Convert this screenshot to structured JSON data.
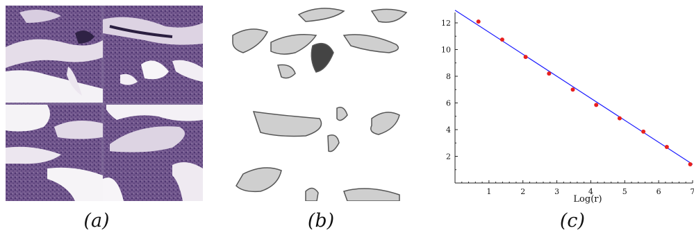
{
  "captions": {
    "a": "(a)",
    "b": "(b)",
    "c": "(c)"
  },
  "colors": {
    "fit_line": "#1a1aff",
    "points": "#e8201e",
    "tissue": "#7a5f96",
    "bone": "#e6e0ea"
  },
  "chart_data": {
    "type": "scatter",
    "xlabel": "Log(r)",
    "ylabel": "",
    "xlim": [
      0,
      7
    ],
    "ylim": [
      0,
      13.5
    ],
    "xticks": [
      1,
      2,
      3,
      4,
      5,
      6,
      7
    ],
    "yticks": [
      2,
      4,
      6,
      8,
      10,
      12
    ],
    "grid": false,
    "series": [
      {
        "x": [
          0.69,
          1.39,
          2.08,
          2.77,
          3.47,
          4.16,
          4.85,
          5.55,
          6.24,
          6.93
        ],
        "y": [
          12.1,
          10.75,
          9.45,
          8.2,
          7.0,
          5.85,
          4.85,
          3.85,
          2.7,
          1.4
        ]
      }
    ],
    "fit_line": {
      "x": [
        0,
        7
      ],
      "y": [
        12.95,
        1.4
      ]
    }
  }
}
